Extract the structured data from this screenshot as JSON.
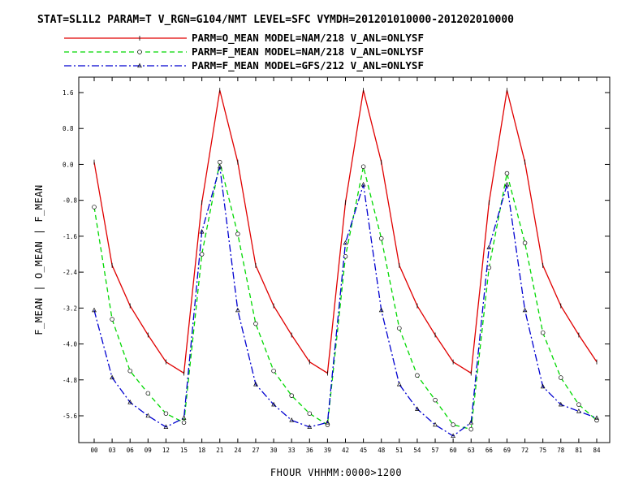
{
  "chart_data": {
    "type": "line",
    "title": "STAT=SL1L2 PARAM=T V_RGN=G104/NMT LEVEL=SFC VYMDH=201201010000-201202010000",
    "xlabel": "FHOUR VHHMM:0000>1200",
    "ylabel": "F_MEAN | O_MEAN | F_MEAN",
    "categories": [
      "00",
      "03",
      "06",
      "09",
      "12",
      "15",
      "18",
      "21",
      "24",
      "27",
      "30",
      "33",
      "36",
      "39",
      "42",
      "45",
      "48",
      "51",
      "54",
      "57",
      "60",
      "63",
      "66",
      "69",
      "72",
      "75",
      "78",
      "81",
      "84"
    ],
    "yticks": [
      "1.6",
      "0.8",
      "0.0",
      "-0.8",
      "-1.6",
      "-2.4",
      "-3.2",
      "-4.0",
      "-4.8",
      "-5.6"
    ],
    "ylim": [
      -6.4,
      2.0
    ],
    "grid": false,
    "legend_position": "top",
    "series": [
      {
        "name": "PARM=O_MEAN MODEL=NAM/218 V_ANL=ONLYSF",
        "color": "#e00000",
        "dash": "solid",
        "marker": "plus",
        "values": [
          0.05,
          -2.25,
          -3.15,
          -3.8,
          -4.4,
          -4.65,
          -0.85,
          1.65,
          0.05,
          -2.25,
          -3.15,
          -3.8,
          -4.4,
          -4.65,
          -0.85,
          1.65,
          0.05,
          -2.25,
          -3.15,
          -3.8,
          -4.4,
          -4.65,
          -0.85,
          1.65,
          0.05,
          -2.25,
          -3.15,
          -3.8,
          -4.4
        ]
      },
      {
        "name": "PARM=F_MEAN MODEL=NAM/218 V_ANL=ONLYSF",
        "color": "#00d800",
        "dash": "dashed",
        "marker": "circle",
        "values": [
          -0.95,
          -3.45,
          -4.6,
          -5.1,
          -5.55,
          -5.75,
          -2.0,
          0.05,
          -1.55,
          -3.55,
          -4.6,
          -5.15,
          -5.55,
          -5.8,
          -2.05,
          -0.05,
          -1.65,
          -3.65,
          -4.7,
          -5.25,
          -5.8,
          -5.9,
          -2.3,
          -0.2,
          -1.75,
          -3.75,
          -4.75,
          -5.35,
          -5.7
        ]
      },
      {
        "name": "PARM=F_MEAN MODEL=GFS/212 V_ANL=ONLYSF",
        "color": "#0000d0",
        "dash": "dashdot",
        "marker": "triangle",
        "values": [
          -3.25,
          -4.75,
          -5.3,
          -5.6,
          -5.85,
          -5.65,
          -1.5,
          -0.05,
          -3.25,
          -4.9,
          -5.35,
          -5.7,
          -5.85,
          -5.75,
          -1.75,
          -0.45,
          -3.25,
          -4.9,
          -5.45,
          -5.8,
          -6.05,
          -5.75,
          -1.85,
          -0.45,
          -3.25,
          -4.95,
          -5.35,
          -5.5,
          -5.65
        ]
      }
    ]
  }
}
